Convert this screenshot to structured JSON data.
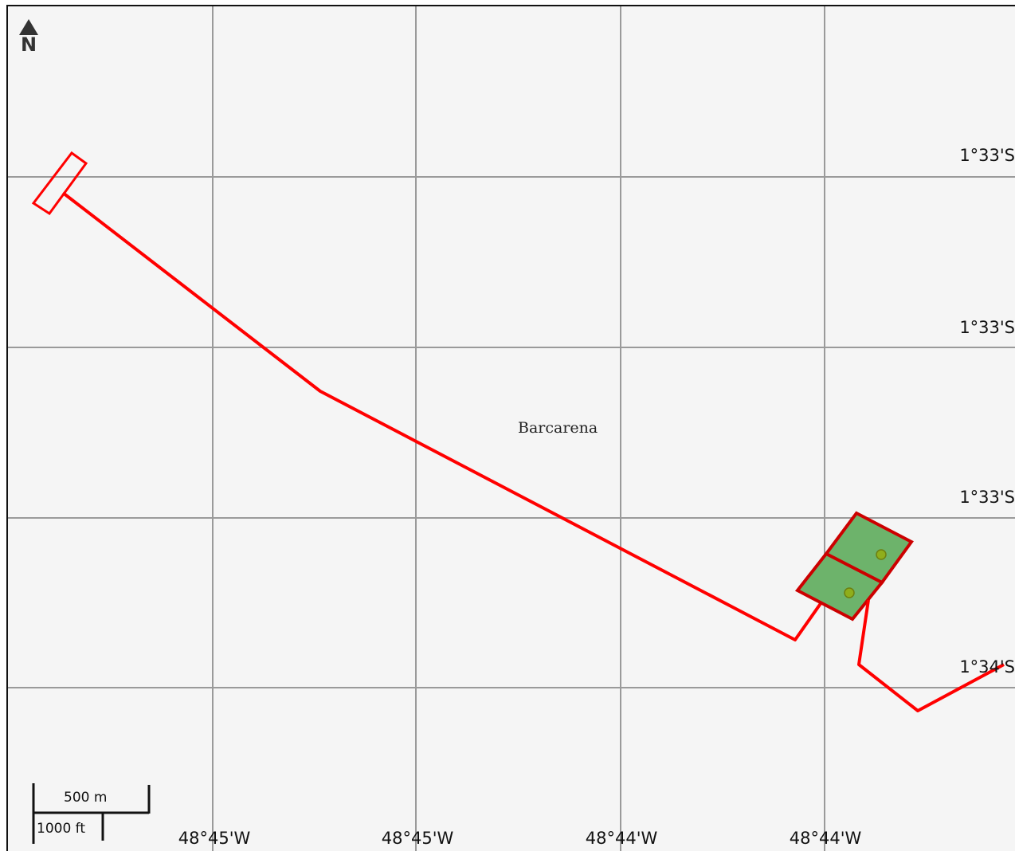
{
  "map": {
    "north_label": "N",
    "place_label": "Barcarena",
    "lat_labels": [
      "1°33'S",
      "1°33'S",
      "1°33'S",
      "1°34'S"
    ],
    "lon_labels": [
      "48°45'W",
      "48°45'W",
      "48°44'W",
      "48°44'W"
    ],
    "scale": {
      "metric": "500 m",
      "imperial": "1000 ft"
    },
    "colors": {
      "background": "#f5f5f5",
      "grid": "#9a9a9a",
      "route": "#ff0000",
      "parcel_fill": "#6db36b",
      "parcel_stroke": "#cc0000",
      "marker": "#8fae1b"
    }
  }
}
